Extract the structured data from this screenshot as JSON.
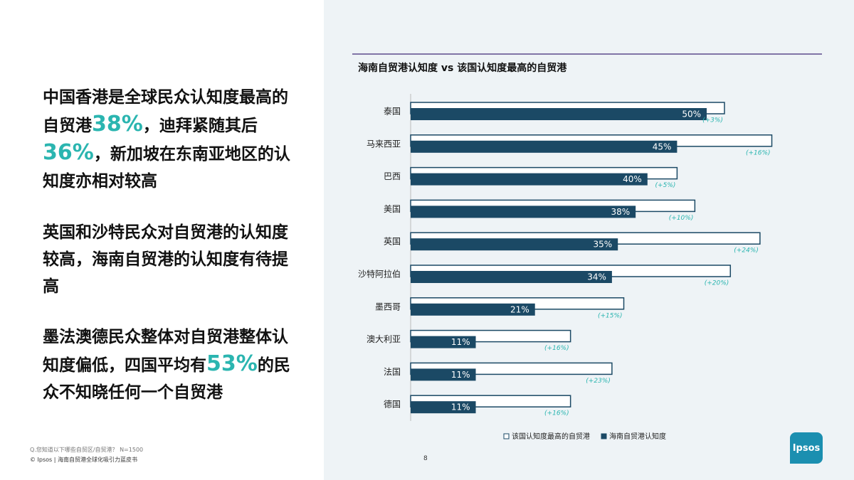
{
  "slide": {
    "paragraphs": [
      [
        {
          "text": "中国香港是全球民众认知度最高的自贸港"
        },
        {
          "text": "38%",
          "em": true
        },
        {
          "text": "，迪拜紧随其后"
        },
        {
          "text": "36%",
          "em": true
        },
        {
          "text": "，新加坡在东南亚地区的认知度亦相对较高"
        }
      ],
      [
        {
          "text": "英国和沙特民众对自贸港的认知度较高，海南自贸港的认知度有待提高"
        }
      ],
      [
        {
          "text": "墨法澳德民众整体对自贸港整体认知度偏低，四国平均有"
        },
        {
          "text": "53%",
          "em": true
        },
        {
          "text": "的民众不知晓任何一个自贸港"
        }
      ]
    ],
    "question": "Q.您知道以下哪些自贸区/自贸港？ N=1500",
    "source": "© Ipsos | 海南自贸港全球化吸引力蓝皮书",
    "page": "8",
    "logo": "Ipsos"
  },
  "chart_data": {
    "type": "hbar",
    "title": "海南自贸港认知度 vs 该国认知度最高的自贸港",
    "categories": [
      "泰国",
      "马来西亚",
      "巴西",
      "美国",
      "英国",
      "沙特阿拉伯",
      "墨西哥",
      "澳大利亚",
      "法国",
      "德国"
    ],
    "xlim": [
      0,
      70
    ],
    "series": [
      {
        "name": "该国认知度最高的自贸港",
        "color": "#ffffff",
        "stroke": "#1b4965",
        "values": [
          53,
          61,
          45,
          48,
          59,
          54,
          36,
          27,
          34,
          27
        ]
      },
      {
        "name": "海南自贸港认知度",
        "color": "#1b4965",
        "values": [
          50,
          45,
          40,
          38,
          35,
          34,
          21,
          11,
          11,
          11
        ],
        "value_labels": [
          "50%",
          "45%",
          "40%",
          "38%",
          "35%",
          "34%",
          "21%",
          "11%",
          "11%",
          "11%"
        ]
      }
    ],
    "annotations": [
      "(+3%)",
      "(+16%)",
      "(+5%)",
      "(+10%)",
      "(+24%)",
      "(+20%)",
      "(+15%)",
      "(+16%)",
      "(+23%)",
      "(+16%)"
    ],
    "annotation_color": "#2bb5b0"
  }
}
